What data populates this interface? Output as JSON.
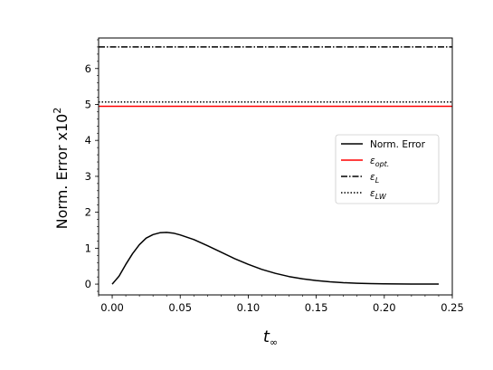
{
  "chart_data": {
    "type": "line",
    "title": "",
    "xlabel": "t",
    "xlabel_sub": "∞",
    "ylabel_main": "Norm.  Error x10",
    "ylabel_sup": "2",
    "xlim": [
      -0.01,
      0.25
    ],
    "ylim": [
      -0.3,
      6.85
    ],
    "x_ticks": [
      0.0,
      0.05,
      0.1,
      0.15,
      0.2,
      0.25
    ],
    "x_tick_labels": [
      "0.00",
      "0.05",
      "0.10",
      "0.15",
      "0.20",
      "0.25"
    ],
    "y_ticks": [
      0,
      1,
      2,
      3,
      4,
      5,
      6
    ],
    "y_tick_labels": [
      "0",
      "1",
      "2",
      "3",
      "4",
      "5",
      "6"
    ],
    "grid": false,
    "legend_position": "right",
    "series": [
      {
        "name": "Norm. Error",
        "kind": "curve",
        "color": "#000000",
        "dash": "solid",
        "x": [
          0.0,
          0.005,
          0.01,
          0.015,
          0.02,
          0.025,
          0.03,
          0.035,
          0.04,
          0.045,
          0.05,
          0.06,
          0.07,
          0.08,
          0.09,
          0.1,
          0.11,
          0.12,
          0.13,
          0.14,
          0.15,
          0.16,
          0.17,
          0.18,
          0.19,
          0.2,
          0.21,
          0.22,
          0.23,
          0.24
        ],
        "y": [
          0.0,
          0.22,
          0.55,
          0.85,
          1.1,
          1.28,
          1.38,
          1.43,
          1.44,
          1.42,
          1.37,
          1.24,
          1.07,
          0.89,
          0.71,
          0.55,
          0.41,
          0.3,
          0.21,
          0.145,
          0.1,
          0.065,
          0.04,
          0.025,
          0.015,
          0.008,
          0.005,
          0.003,
          0.002,
          0.001
        ]
      },
      {
        "name": "ε",
        "name_sub": "opt.",
        "kind": "hline",
        "y": 4.95,
        "color": "#ff0000",
        "dash": "solid"
      },
      {
        "name": "ε",
        "name_sub": "L",
        "kind": "hline",
        "y": 6.6,
        "color": "#000000",
        "dash": "dashdot"
      },
      {
        "name": "ε",
        "name_sub": "LW",
        "kind": "hline",
        "y": 5.07,
        "color": "#000000",
        "dash": "dotted"
      }
    ]
  }
}
